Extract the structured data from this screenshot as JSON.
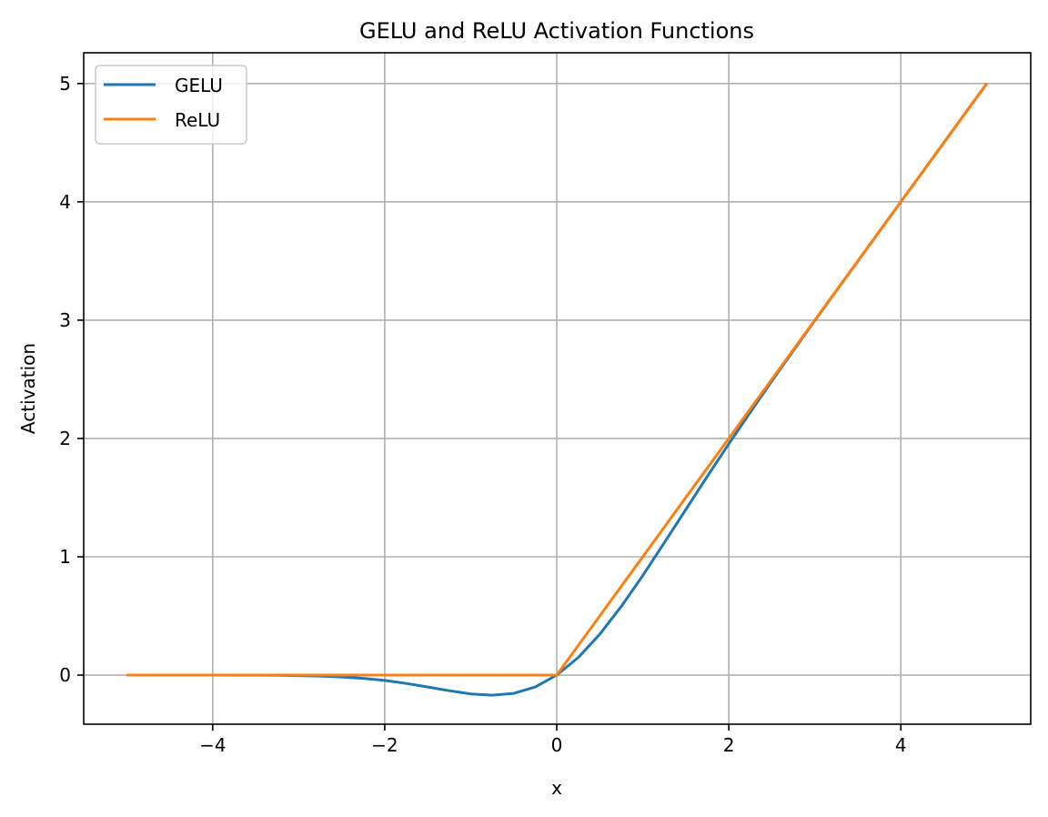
{
  "chart_data": {
    "type": "line",
    "title": "GELU and ReLU Activation Functions",
    "xlabel": "x",
    "ylabel": "Activation",
    "xlim": [
      -5.5,
      5.51
    ],
    "ylim": [
      -0.415,
      5.26
    ],
    "xticks": [
      -4,
      -2,
      0,
      2,
      4
    ],
    "xtick_labels": [
      "−4",
      "−2",
      "0",
      "2",
      "4"
    ],
    "yticks": [
      0,
      1,
      2,
      3,
      4,
      5
    ],
    "ytick_labels": [
      "0",
      "1",
      "2",
      "3",
      "4",
      "5"
    ],
    "grid": true,
    "legend_position": "upper-left",
    "series": [
      {
        "name": "GELU",
        "color": "#1f77b4",
        "x": [
          -5,
          -4.75,
          -4.5,
          -4.25,
          -4,
          -3.75,
          -3.5,
          -3.25,
          -3,
          -2.75,
          -2.5,
          -2.25,
          -2,
          -1.75,
          -1.5,
          -1.25,
          -1,
          -0.75,
          -0.5,
          -0.25,
          0,
          0.25,
          0.5,
          0.75,
          1,
          1.25,
          1.5,
          1.75,
          2,
          2.25,
          2.5,
          2.75,
          3,
          3.25,
          3.5,
          3.75,
          4,
          4.25,
          4.5,
          4.75,
          5
        ],
        "y": [
          0,
          0,
          -2e-05,
          -5e-05,
          -0.00013,
          -0.00033,
          -0.00081,
          -0.00188,
          -0.00405,
          -0.00823,
          -0.01553,
          -0.02744,
          -0.0455,
          -0.07012,
          -0.1002,
          -0.13203,
          -0.15866,
          -0.16997,
          -0.15429,
          -0.10032,
          0,
          0.14968,
          0.34571,
          0.58003,
          0.84134,
          1.11797,
          1.3998,
          1.67988,
          1.9545,
          2.22256,
          2.48447,
          2.74177,
          2.99595,
          3.24812,
          3.49919,
          3.74967,
          3.99987,
          4.24995,
          4.49998,
          4.75,
          5
        ]
      },
      {
        "name": "ReLU",
        "color": "#ff7f0e",
        "x": [
          -5,
          0,
          5
        ],
        "y": [
          0,
          0,
          5
        ]
      }
    ]
  }
}
